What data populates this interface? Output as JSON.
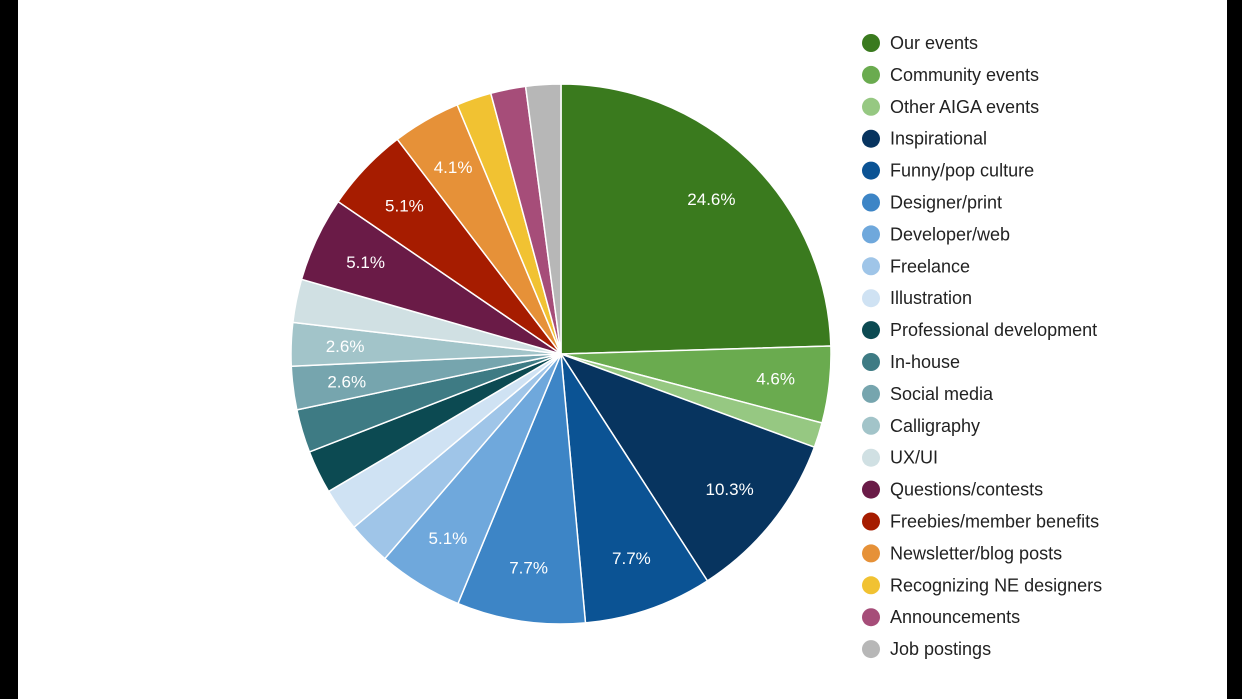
{
  "chart_data": {
    "type": "pie",
    "legend_position": "right",
    "slices": [
      {
        "name": "Our events",
        "value": 24.6,
        "color": "#3a7a1e",
        "label": "24.6%"
      },
      {
        "name": "Community events",
        "value": 4.6,
        "color": "#6aab4f",
        "label": "4.6%"
      },
      {
        "name": "Other AIGA events",
        "value": 1.5,
        "color": "#96c882",
        "label": ""
      },
      {
        "name": "Inspirational",
        "value": 10.3,
        "color": "#07345f",
        "label": "10.3%"
      },
      {
        "name": "Funny/pop culture",
        "value": 7.7,
        "color": "#0b5394",
        "label": "7.7%"
      },
      {
        "name": "Designer/print",
        "value": 7.7,
        "color": "#3d85c6",
        "label": "7.7%"
      },
      {
        "name": "Developer/web",
        "value": 5.1,
        "color": "#6fa8dc",
        "label": "5.1%"
      },
      {
        "name": "Freelance",
        "value": 2.6,
        "color": "#9fc5e8",
        "label": ""
      },
      {
        "name": "Illustration",
        "value": 2.6,
        "color": "#cfe2f3",
        "label": ""
      },
      {
        "name": "Professional development",
        "value": 2.6,
        "color": "#0c4a52",
        "label": ""
      },
      {
        "name": "In-house",
        "value": 2.6,
        "color": "#3e7b84",
        "label": ""
      },
      {
        "name": "Social media",
        "value": 2.6,
        "color": "#76a5ae",
        "label": "2.6%"
      },
      {
        "name": "Calligraphy",
        "value": 2.6,
        "color": "#a2c4c9",
        "label": "2.6%"
      },
      {
        "name": "UX/UI",
        "value": 2.6,
        "color": "#d0e0e3",
        "label": ""
      },
      {
        "name": "Questions/contests",
        "value": 5.1,
        "color": "#6a1b47",
        "label": "5.1%"
      },
      {
        "name": "Freebies/member benefits",
        "value": 5.1,
        "color": "#a61c00",
        "label": "5.1%"
      },
      {
        "name": "Newsletter/blog posts",
        "value": 4.1,
        "color": "#e69138",
        "label": "4.1%"
      },
      {
        "name": "Recognizing NE designers",
        "value": 2.1,
        "color": "#f1c232",
        "label": ""
      },
      {
        "name": "Announcements",
        "value": 2.1,
        "color": "#a64d79",
        "label": ""
      },
      {
        "name": "Job postings",
        "value": 2.1,
        "color": "#b7b7b7",
        "label": ""
      }
    ]
  }
}
